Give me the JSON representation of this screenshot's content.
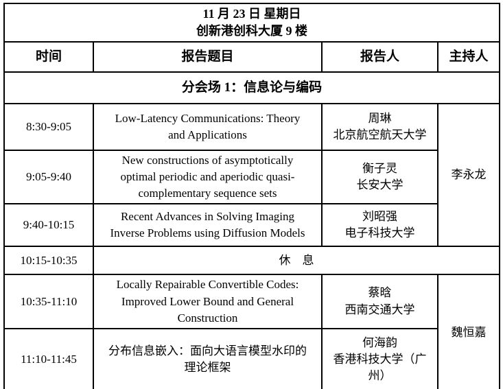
{
  "header": {
    "date_line": "11 月 23 日  星期日",
    "venue_line": "创新港创科大厦 9 楼"
  },
  "columns": {
    "time": "时间",
    "title": "报告题目",
    "speaker": "报告人",
    "chair": "主持人"
  },
  "session": {
    "label": "分会场 1：信息论与编码"
  },
  "rows": [
    {
      "time": "8:30-9:05",
      "title": "Low-Latency Communications: Theory and Applications",
      "speaker_name": "周琳",
      "speaker_affiliation": "北京航空航天大学"
    },
    {
      "time": "9:05-9:40",
      "title": "New constructions of asymptotically optimal periodic and aperiodic quasi-complementary sequence sets",
      "speaker_name": "衡子灵",
      "speaker_affiliation": "长安大学"
    },
    {
      "time": "9:40-10:15",
      "title": "Recent Advances in Solving Imaging Inverse Problems using Diffusion Models",
      "speaker_name": "刘昭强",
      "speaker_affiliation": "电子科技大学"
    },
    {
      "time": "10:35-11:10",
      "title": "Locally Repairable Convertible Codes: Improved Lower Bound and General Construction",
      "speaker_name": "蔡晗",
      "speaker_affiliation": "西南交通大学"
    },
    {
      "time": "11:10-11:45",
      "title": "分布信息嵌入：面向大语言模型水印的理论框架",
      "speaker_name": "何海韵",
      "speaker_affiliation": "香港科技大学（广州）"
    }
  ],
  "break_row": {
    "time": "10:15-10:35",
    "label": "休　息"
  },
  "chairs": [
    {
      "name": "李永龙"
    },
    {
      "name": "魏恒嘉"
    }
  ],
  "colors": {
    "border": "#000000",
    "background": "#ffffff",
    "text": "#000000"
  }
}
